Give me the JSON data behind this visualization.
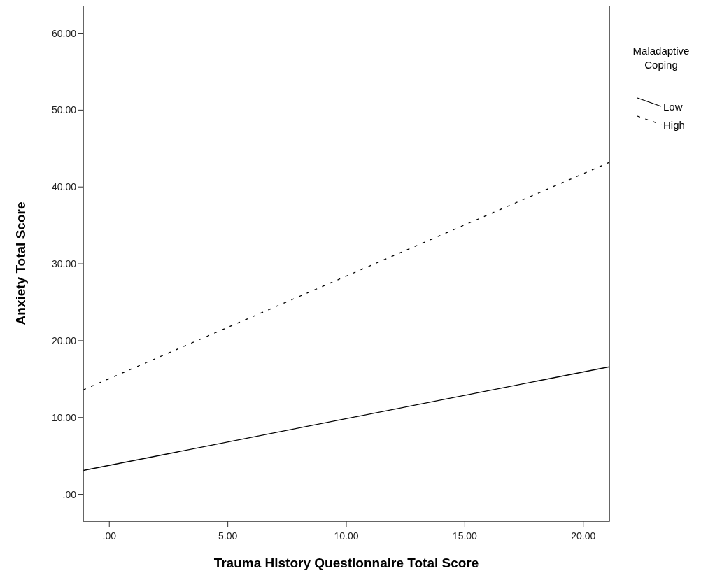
{
  "chart_data": {
    "type": "line",
    "xlabel": "Trauma History Questionnaire Total Score",
    "ylabel": "Anxiety Total Score",
    "legend_title": "Maladaptive Coping",
    "legend": "right",
    "x": [
      -1.1,
      21.1
    ],
    "series": [
      {
        "name": "Low",
        "color": "#000000",
        "values": [
          3.1,
          16.6
        ],
        "line_style": "solid"
      },
      {
        "name": "High",
        "color": "#000000",
        "values": [
          13.6,
          43.2
        ],
        "line_style": "dashed"
      }
    ],
    "xlim": [
      -1.1,
      21.1
    ],
    "ylim": [
      -3.5,
      63.6
    ],
    "xticks": [
      {
        "value": 0,
        "label": ".00"
      },
      {
        "value": 5,
        "label": "5.00"
      },
      {
        "value": 10,
        "label": "10.00"
      },
      {
        "value": 15,
        "label": "15.00"
      },
      {
        "value": 20,
        "label": "20.00"
      }
    ],
    "yticks": [
      {
        "value": 0,
        "label": ".00"
      },
      {
        "value": 10,
        "label": "10.00"
      },
      {
        "value": 20,
        "label": "20.00"
      },
      {
        "value": 30,
        "label": "30.00"
      },
      {
        "value": 40,
        "label": "40.00"
      },
      {
        "value": 50,
        "label": "50.00"
      },
      {
        "value": 60,
        "label": "60.00"
      }
    ],
    "grid": false
  }
}
